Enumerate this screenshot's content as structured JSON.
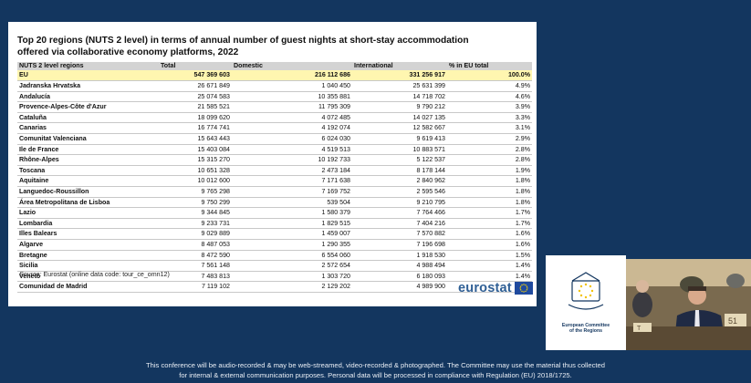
{
  "slide": {
    "title_line1": "Top 20 regions (NUTS 2 level) in terms of annual number of guest nights at short-stay accommodation",
    "title_line2": "offered via collaborative economy platforms, 2022",
    "columns": [
      "NUTS 2 level regions",
      "Total",
      "Domestic",
      "International",
      "% in EU total"
    ],
    "eu_row": {
      "name": "EU",
      "total": "547 369 603",
      "domestic": "216 112 686",
      "international": "331 256 917",
      "pct": "100.0%"
    },
    "rows": [
      {
        "name": "Jadranska Hrvatska",
        "total": "26 671 849",
        "domestic": "1 040 450",
        "international": "25 631 399",
        "pct": "4.9%"
      },
      {
        "name": "Andalucía",
        "total": "25 074 583",
        "domestic": "10 355 881",
        "international": "14 718 702",
        "pct": "4.6%"
      },
      {
        "name": "Provence-Alpes-Côte d'Azur",
        "total": "21 585 521",
        "domestic": "11 795 309",
        "international": "9 790 212",
        "pct": "3.9%"
      },
      {
        "name": "Cataluña",
        "total": "18 099 620",
        "domestic": "4 072 485",
        "international": "14 027 135",
        "pct": "3.3%"
      },
      {
        "name": "Canarias",
        "total": "16 774 741",
        "domestic": "4 192 074",
        "international": "12 582 667",
        "pct": "3.1%"
      },
      {
        "name": "Comunitat Valenciana",
        "total": "15 643 443",
        "domestic": "6 024 030",
        "international": "9 619 413",
        "pct": "2.9%"
      },
      {
        "name": "Ile de France",
        "total": "15 403 084",
        "domestic": "4 519 513",
        "international": "10 883 571",
        "pct": "2.8%"
      },
      {
        "name": "Rhône-Alpes",
        "total": "15 315 270",
        "domestic": "10 192 733",
        "international": "5 122 537",
        "pct": "2.8%"
      },
      {
        "name": "Toscana",
        "total": "10 651 328",
        "domestic": "2 473 184",
        "international": "8 178 144",
        "pct": "1.9%"
      },
      {
        "name": "Aquitaine",
        "total": "10 012 600",
        "domestic": "7 171 638",
        "international": "2 840 962",
        "pct": "1.8%"
      },
      {
        "name": "Languedoc-Roussillon",
        "total": "9 765 298",
        "domestic": "7 169 752",
        "international": "2 595 546",
        "pct": "1.8%"
      },
      {
        "name": "Área Metropolitana de Lisboa",
        "total": "9 750 299",
        "domestic": "539 504",
        "international": "9 210 795",
        "pct": "1.8%"
      },
      {
        "name": "Lazio",
        "total": "9 344 845",
        "domestic": "1 580 379",
        "international": "7 764 466",
        "pct": "1.7%"
      },
      {
        "name": "Lombardia",
        "total": "9 233 731",
        "domestic": "1 829 515",
        "international": "7 404 216",
        "pct": "1.7%"
      },
      {
        "name": "Illes Balears",
        "total": "9 029 889",
        "domestic": "1 459 007",
        "international": "7 570 882",
        "pct": "1.6%"
      },
      {
        "name": "Algarve",
        "total": "8 487 053",
        "domestic": "1 290 355",
        "international": "7 196 698",
        "pct": "1.6%"
      },
      {
        "name": "Bretagne",
        "total": "8 472 590",
        "domestic": "6 554 060",
        "international": "1 918 530",
        "pct": "1.5%"
      },
      {
        "name": "Sicilia",
        "total": "7 561 148",
        "domestic": "2 572 654",
        "international": "4 988 494",
        "pct": "1.4%"
      },
      {
        "name": "Veneto",
        "total": "7 483 813",
        "domestic": "1 303 720",
        "international": "6 180 093",
        "pct": "1.4%"
      },
      {
        "name": "Comunidad de Madrid",
        "total": "7 119 102",
        "domestic": "2 129 202",
        "international": "4 989 900",
        "pct": "1.3%"
      }
    ],
    "source_label": "Source:",
    "source_text": "Eurostat (online data code: tour_ce_omn12)",
    "eurostat_logo": "eurostat"
  },
  "cor_logo": {
    "line1": "European Committee",
    "line2": "of the Regions"
  },
  "disclaimer": {
    "line1": "This conference will be audio-recorded & may be web-streamed, video-recorded & photographed. The Committee may use the material thus collected",
    "line2": "for internal & external communication purposes. Personal data will be processed in compliance with Regulation (EU) 2018/1725."
  },
  "video": {
    "desk_number": "51",
    "desk_number_left": "T"
  },
  "colors": {
    "background": "#13365f",
    "eu_row_highlight": "#fff6b0",
    "header_gray": "#d3d3d3",
    "eurostat_blue": "#2f5f95"
  }
}
